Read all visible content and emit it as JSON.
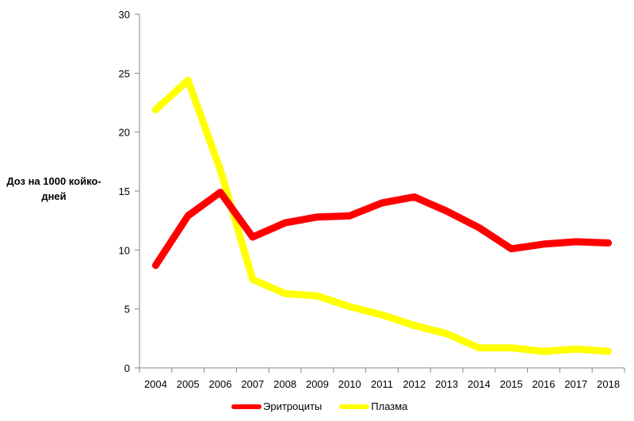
{
  "chart_data": {
    "type": "line",
    "title": "",
    "ylabel": "Доз на 1000 койко-дней",
    "xlabel": "",
    "x": [
      "2004",
      "2005",
      "2006",
      "2007",
      "2008",
      "2009",
      "2010",
      "2011",
      "2012",
      "2013",
      "2014",
      "2015",
      "2016",
      "2017",
      "2018"
    ],
    "ylim": [
      0,
      30
    ],
    "yticks": [
      0,
      5,
      10,
      15,
      20,
      25,
      30
    ],
    "grid": false,
    "legend_position": "bottom",
    "series": [
      {
        "name": "Эритроциты",
        "color": "#ff0000",
        "values": [
          8.7,
          12.9,
          14.9,
          11.1,
          12.3,
          12.8,
          12.9,
          14.0,
          14.5,
          13.3,
          11.9,
          10.1,
          10.5,
          10.7,
          10.6
        ]
      },
      {
        "name": "Плазма",
        "color": "#ffff00",
        "values": [
          21.9,
          24.4,
          16.8,
          7.5,
          6.3,
          6.1,
          5.2,
          4.5,
          3.6,
          2.9,
          1.7,
          1.7,
          1.4,
          1.6,
          1.4
        ]
      }
    ]
  }
}
